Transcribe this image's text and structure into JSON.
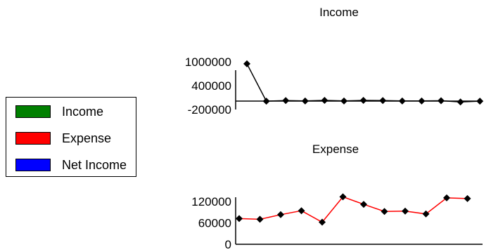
{
  "legend": {
    "items": [
      {
        "label": "Income",
        "color": "#008000"
      },
      {
        "label": "Expense",
        "color": "#ff0000"
      },
      {
        "label": "Net Income",
        "color": "#0000ff"
      }
    ]
  },
  "chart_data": [
    {
      "type": "line",
      "title": "Income",
      "xlabel": "",
      "ylabel": "",
      "yticks": [
        "1000000",
        "400000",
        "-200000"
      ],
      "ylim": [
        -200000,
        1000000
      ],
      "color": "#000000",
      "series": [
        {
          "values": [
            950000,
            10000,
            25000,
            15000,
            30000,
            15000,
            30000,
            25000,
            15000,
            15000,
            20000,
            -10000,
            10000
          ]
        }
      ]
    },
    {
      "type": "line",
      "title": "Expense",
      "xlabel": "",
      "ylabel": "",
      "yticks": [
        "120000",
        "60000",
        "0"
      ],
      "ylim": [
        0,
        120000
      ],
      "color": "#ff0000",
      "series": [
        {
          "values": [
            72000,
            70000,
            83000,
            94000,
            62000,
            133000,
            112000,
            92000,
            93000,
            85000,
            130000,
            128000
          ]
        }
      ]
    }
  ]
}
